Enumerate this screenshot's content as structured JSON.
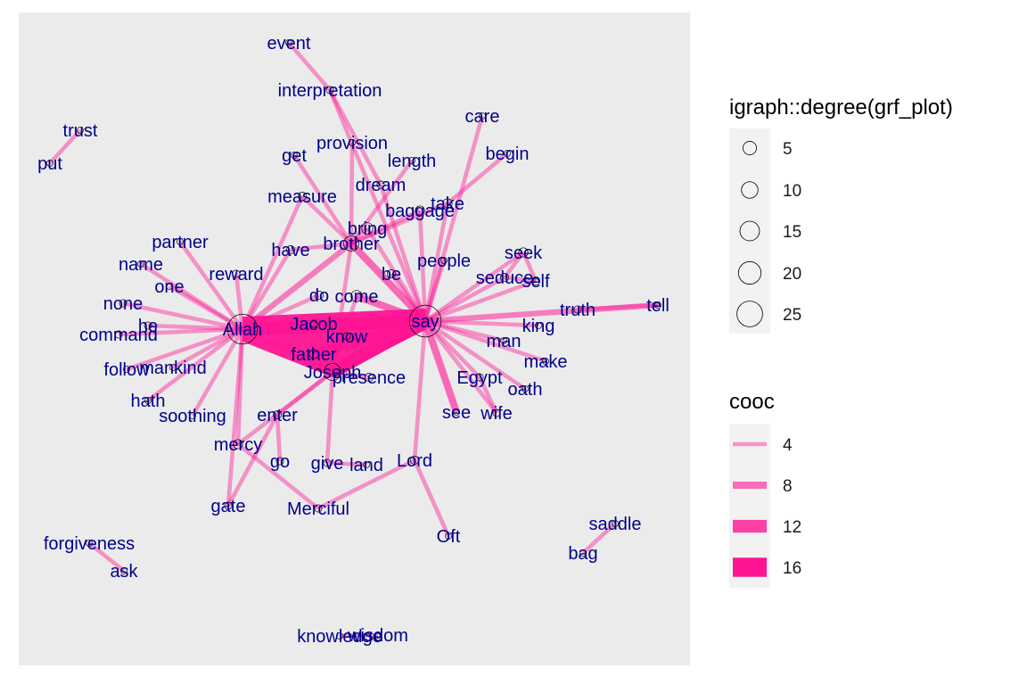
{
  "chart_data": {
    "type": "network",
    "panel_background": "#ebebeb",
    "edge_color": "#ff1493",
    "node_label_color": "#00008b",
    "nodes": [
      {
        "name": "event",
        "degree": 1
      },
      {
        "name": "interpretation",
        "degree": 2
      },
      {
        "name": "trust",
        "degree": 1
      },
      {
        "name": "put",
        "degree": 1
      },
      {
        "name": "care",
        "degree": 1
      },
      {
        "name": "provision",
        "degree": 1
      },
      {
        "name": "get",
        "degree": 1
      },
      {
        "name": "begin",
        "degree": 1
      },
      {
        "name": "length",
        "degree": 1
      },
      {
        "name": "dream",
        "degree": 2
      },
      {
        "name": "measure",
        "degree": 3
      },
      {
        "name": "take",
        "degree": 4
      },
      {
        "name": "baggage",
        "degree": 4
      },
      {
        "name": "bring",
        "degree": 6
      },
      {
        "name": "partner",
        "degree": 1
      },
      {
        "name": "brother",
        "degree": 10
      },
      {
        "name": "have",
        "degree": 3
      },
      {
        "name": "name",
        "degree": 1
      },
      {
        "name": "seek",
        "degree": 4
      },
      {
        "name": "people",
        "degree": 1
      },
      {
        "name": "reward",
        "degree": 2
      },
      {
        "name": "be",
        "degree": 3
      },
      {
        "name": "one",
        "degree": 1
      },
      {
        "name": "seduce",
        "degree": 3
      },
      {
        "name": "self",
        "degree": 3
      },
      {
        "name": "do",
        "degree": 3
      },
      {
        "name": "come",
        "degree": 6
      },
      {
        "name": "none",
        "degree": 2
      },
      {
        "name": "tell",
        "degree": 1
      },
      {
        "name": "truth",
        "degree": 2
      },
      {
        "name": "Jacob",
        "degree": 2
      },
      {
        "name": "he",
        "degree": 2
      },
      {
        "name": "Allah",
        "degree": 25
      },
      {
        "name": "say",
        "degree": 27
      },
      {
        "name": "king",
        "degree": 1
      },
      {
        "name": "command",
        "degree": 2
      },
      {
        "name": "know",
        "degree": 2
      },
      {
        "name": "man",
        "degree": 1
      },
      {
        "name": "father",
        "degree": 4
      },
      {
        "name": "make",
        "degree": 1
      },
      {
        "name": "follow",
        "degree": 1
      },
      {
        "name": "mankind",
        "degree": 1
      },
      {
        "name": "Joseph",
        "degree": 12
      },
      {
        "name": "presence",
        "degree": 3
      },
      {
        "name": "Egypt",
        "degree": 2
      },
      {
        "name": "oath",
        "degree": 1
      },
      {
        "name": "hath",
        "degree": 1
      },
      {
        "name": "enter",
        "degree": 3
      },
      {
        "name": "soothing",
        "degree": 1
      },
      {
        "name": "see",
        "degree": 1
      },
      {
        "name": "wife",
        "degree": 2
      },
      {
        "name": "mercy",
        "degree": 4
      },
      {
        "name": "Lord",
        "degree": 3
      },
      {
        "name": "go",
        "degree": 2
      },
      {
        "name": "give",
        "degree": 2
      },
      {
        "name": "land",
        "degree": 1
      },
      {
        "name": "gate",
        "degree": 2
      },
      {
        "name": "Merciful",
        "degree": 2
      },
      {
        "name": "saddle",
        "degree": 1
      },
      {
        "name": "Oft",
        "degree": 1
      },
      {
        "name": "forgiveness",
        "degree": 1
      },
      {
        "name": "bag",
        "degree": 1
      },
      {
        "name": "ask",
        "degree": 1
      },
      {
        "name": "knowledge",
        "degree": 1
      },
      {
        "name": "wisdom",
        "degree": 1
      }
    ],
    "edges": [
      {
        "from": "Allah",
        "to": "say",
        "cooc": 16
      },
      {
        "from": "Joseph",
        "to": "say",
        "cooc": 16
      },
      {
        "from": "Jacob",
        "to": "say",
        "cooc": 12
      },
      {
        "from": "father",
        "to": "say",
        "cooc": 12
      },
      {
        "from": "come",
        "to": "say",
        "cooc": 8
      },
      {
        "from": "say",
        "to": "see",
        "cooc": 8
      },
      {
        "from": "say",
        "to": "tell",
        "cooc": 6
      },
      {
        "from": "brother",
        "to": "say",
        "cooc": 8
      },
      {
        "from": "Allah",
        "to": "brother",
        "cooc": 6
      },
      {
        "from": "Allah",
        "to": "Joseph",
        "cooc": 6
      },
      {
        "from": "Allah",
        "to": "command",
        "cooc": 4
      },
      {
        "from": "Allah",
        "to": "none",
        "cooc": 4
      },
      {
        "from": "Allah",
        "to": "he",
        "cooc": 4
      },
      {
        "from": "Allah",
        "to": "name",
        "cooc": 4
      },
      {
        "from": "Allah",
        "to": "one",
        "cooc": 4
      },
      {
        "from": "Allah",
        "to": "partner",
        "cooc": 4
      },
      {
        "from": "Allah",
        "to": "reward",
        "cooc": 4
      },
      {
        "from": "Allah",
        "to": "follow",
        "cooc": 4
      },
      {
        "from": "Allah",
        "to": "mankind",
        "cooc": 4
      },
      {
        "from": "Allah",
        "to": "hath",
        "cooc": 4
      },
      {
        "from": "Allah",
        "to": "soothing",
        "cooc": 4
      },
      {
        "from": "Allah",
        "to": "mercy",
        "cooc": 4
      },
      {
        "from": "Allah",
        "to": "gate",
        "cooc": 4
      },
      {
        "from": "Allah",
        "to": "measure",
        "cooc": 4
      },
      {
        "from": "Allah",
        "to": "have",
        "cooc": 4
      },
      {
        "from": "Allah",
        "to": "do",
        "cooc": 4
      },
      {
        "from": "say",
        "to": "seek",
        "cooc": 4
      },
      {
        "from": "say",
        "to": "seduce",
        "cooc": 4
      },
      {
        "from": "say",
        "to": "self",
        "cooc": 4
      },
      {
        "from": "say",
        "to": "people",
        "cooc": 4
      },
      {
        "from": "say",
        "to": "king",
        "cooc": 4
      },
      {
        "from": "say",
        "to": "man",
        "cooc": 4
      },
      {
        "from": "say",
        "to": "make",
        "cooc": 4
      },
      {
        "from": "say",
        "to": "oath",
        "cooc": 4
      },
      {
        "from": "say",
        "to": "Egypt",
        "cooc": 4
      },
      {
        "from": "say",
        "to": "wife",
        "cooc": 4
      },
      {
        "from": "say",
        "to": "take",
        "cooc": 4
      },
      {
        "from": "say",
        "to": "baggage",
        "cooc": 4
      },
      {
        "from": "say",
        "to": "care",
        "cooc": 4
      },
      {
        "from": "say",
        "to": "be",
        "cooc": 4
      },
      {
        "from": "say",
        "to": "bring",
        "cooc": 4
      },
      {
        "from": "say",
        "to": "Lord",
        "cooc": 4
      },
      {
        "from": "say",
        "to": "dream",
        "cooc": 4
      },
      {
        "from": "say",
        "to": "interpretation",
        "cooc": 4
      },
      {
        "from": "brother",
        "to": "bring",
        "cooc": 4
      },
      {
        "from": "brother",
        "to": "baggage",
        "cooc": 4
      },
      {
        "from": "brother",
        "to": "get",
        "cooc": 4
      },
      {
        "from": "brother",
        "to": "provision",
        "cooc": 4
      },
      {
        "from": "brother",
        "to": "measure",
        "cooc": 4
      },
      {
        "from": "brother",
        "to": "length",
        "cooc": 4
      },
      {
        "from": "brother",
        "to": "take",
        "cooc": 4
      },
      {
        "from": "brother",
        "to": "have",
        "cooc": 4
      },
      {
        "from": "brother",
        "to": "Joseph",
        "cooc": 4
      },
      {
        "from": "take",
        "to": "begin",
        "cooc": 4
      },
      {
        "from": "seek",
        "to": "seduce",
        "cooc": 4
      },
      {
        "from": "seek",
        "to": "self",
        "cooc": 4
      },
      {
        "from": "seduce",
        "to": "self",
        "cooc": 4
      },
      {
        "from": "truth",
        "to": "tell",
        "cooc": 4
      },
      {
        "from": "Egypt",
        "to": "wife",
        "cooc": 4
      },
      {
        "from": "Joseph",
        "to": "presence",
        "cooc": 4
      },
      {
        "from": "Joseph",
        "to": "come",
        "cooc": 4
      },
      {
        "from": "Joseph",
        "to": "give",
        "cooc": 4
      },
      {
        "from": "Joseph",
        "to": "enter",
        "cooc": 4
      },
      {
        "from": "Joseph",
        "to": "mercy",
        "cooc": 4
      },
      {
        "from": "Joseph",
        "to": "father",
        "cooc": 4
      },
      {
        "from": "enter",
        "to": "go",
        "cooc": 4
      },
      {
        "from": "Lord",
        "to": "Merciful",
        "cooc": 4
      },
      {
        "from": "Lord",
        "to": "Oft",
        "cooc": 4
      },
      {
        "from": "mercy",
        "to": "Merciful",
        "cooc": 4
      },
      {
        "from": "give",
        "to": "land",
        "cooc": 4
      },
      {
        "from": "gate",
        "to": "enter",
        "cooc": 4
      },
      {
        "from": "event",
        "to": "interpretation",
        "cooc": 4
      },
      {
        "from": "interpretation",
        "to": "dream",
        "cooc": 4
      },
      {
        "from": "trust",
        "to": "put",
        "cooc": 4
      },
      {
        "from": "forgiveness",
        "to": "ask",
        "cooc": 4
      },
      {
        "from": "saddle",
        "to": "bag",
        "cooc": 4
      },
      {
        "from": "knowledge",
        "to": "wisdom",
        "cooc": 4
      }
    ],
    "legend_size": {
      "title": "igraph::degree(grf_plot)",
      "values": [
        5,
        10,
        15,
        20,
        25
      ],
      "labels": [
        "5",
        "10",
        "15",
        "20",
        "25"
      ]
    },
    "legend_edge": {
      "title": "cooc",
      "values": [
        4,
        8,
        12,
        16
      ],
      "labels": [
        "4",
        "8",
        "12",
        "16"
      ]
    }
  }
}
